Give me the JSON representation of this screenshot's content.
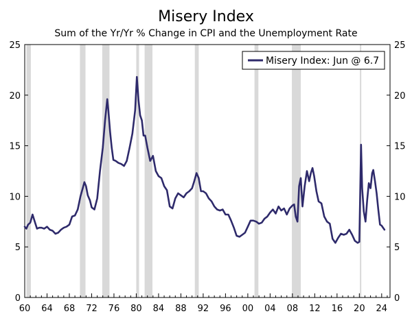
{
  "chart_data": {
    "type": "line",
    "title": "Misery Index",
    "subtitle": "Sum of the Yr/Yr % Change in CPI and the Unemployment Rate",
    "xlabel": "",
    "ylabel": "",
    "xlim": [
      1960,
      2025.5
    ],
    "ylim": [
      0,
      25
    ],
    "x_ticks": [
      1960,
      1964,
      1968,
      1972,
      1976,
      1980,
      1984,
      1988,
      1992,
      1996,
      2000,
      2004,
      2008,
      2012,
      2016,
      2020,
      2024
    ],
    "x_tick_labels": [
      "60",
      "64",
      "68",
      "72",
      "76",
      "80",
      "84",
      "88",
      "92",
      "96",
      "00",
      "04",
      "08",
      "12",
      "16",
      "20",
      "24"
    ],
    "y_ticks": [
      0,
      5,
      10,
      15,
      20,
      25
    ],
    "y_tick_labels": [
      "0",
      "5",
      "10",
      "15",
      "20",
      "25"
    ],
    "grid": false,
    "legend_position": "top-right",
    "legend_entries": [
      "Misery Index: Jun @ 6.7"
    ],
    "colors": {
      "line": "#2e2a6b",
      "recession": "#d9d9d9",
      "axis": "#000000"
    },
    "recessions": [
      [
        1960.3,
        1961.1
      ],
      [
        1969.9,
        1970.9
      ],
      [
        1973.9,
        1975.2
      ],
      [
        1980.0,
        1980.5
      ],
      [
        1981.5,
        1982.9
      ],
      [
        1990.5,
        1991.2
      ],
      [
        2001.2,
        2001.9
      ],
      [
        2007.9,
        2009.5
      ],
      [
        2020.1,
        2020.3
      ]
    ],
    "series": [
      {
        "name": "Misery Index: Jun @ 6.7",
        "x": [
          1960.0,
          1960.3,
          1960.6,
          1961.0,
          1961.4,
          1961.8,
          1962.2,
          1962.6,
          1963.0,
          1963.5,
          1964.0,
          1964.5,
          1965.0,
          1965.5,
          1966.0,
          1966.5,
          1967.0,
          1967.5,
          1968.0,
          1968.5,
          1969.0,
          1969.5,
          1970.0,
          1970.4,
          1970.7,
          1971.0,
          1971.3,
          1971.7,
          1972.0,
          1972.5,
          1973.0,
          1973.5,
          1974.0,
          1974.4,
          1974.8,
          1975.0,
          1975.3,
          1975.6,
          1975.9,
          1976.3,
          1976.8,
          1977.3,
          1977.8,
          1978.3,
          1978.8,
          1979.3,
          1979.8,
          1980.1,
          1980.4,
          1980.7,
          1981.0,
          1981.3,
          1981.6,
          1982.0,
          1982.5,
          1983.0,
          1983.5,
          1984.0,
          1984.5,
          1985.0,
          1985.5,
          1986.0,
          1986.5,
          1987.0,
          1987.5,
          1988.0,
          1988.5,
          1989.0,
          1989.5,
          1990.0,
          1990.4,
          1990.8,
          1991.2,
          1991.6,
          1992.0,
          1992.5,
          1993.0,
          1993.5,
          1994.0,
          1994.5,
          1995.0,
          1995.5,
          1996.0,
          1996.5,
          1997.0,
          1997.5,
          1998.0,
          1998.5,
          1999.0,
          1999.5,
          2000.0,
          2000.5,
          2001.0,
          2001.5,
          2002.0,
          2002.5,
          2003.0,
          2003.5,
          2004.0,
          2004.5,
          2005.0,
          2005.5,
          2006.0,
          2006.5,
          2007.0,
          2007.5,
          2008.0,
          2008.3,
          2008.6,
          2008.9,
          2009.2,
          2009.5,
          2009.8,
          2010.2,
          2010.6,
          2011.0,
          2011.3,
          2011.6,
          2011.9,
          2012.3,
          2012.7,
          2013.2,
          2013.7,
          2014.2,
          2014.7,
          2015.2,
          2015.7,
          2016.2,
          2016.7,
          2017.2,
          2017.7,
          2018.2,
          2018.7,
          2019.2,
          2019.7,
          2020.0,
          2020.3,
          2020.5,
          2020.8,
          2021.1,
          2021.4,
          2021.7,
          2022.0,
          2022.3,
          2022.5,
          2022.8,
          2023.1,
          2023.4,
          2023.7,
          2024.0,
          2024.5
        ],
        "values": [
          7.0,
          6.8,
          7.2,
          7.4,
          8.2,
          7.5,
          6.8,
          6.9,
          6.9,
          6.8,
          7.0,
          6.7,
          6.6,
          6.3,
          6.4,
          6.7,
          6.9,
          7.0,
          7.2,
          8.0,
          8.1,
          8.7,
          10.0,
          10.8,
          11.4,
          11.0,
          10.1,
          9.6,
          8.9,
          8.7,
          9.8,
          12.5,
          14.8,
          17.5,
          19.6,
          18.5,
          16.4,
          14.8,
          13.6,
          13.5,
          13.3,
          13.2,
          13.0,
          13.5,
          14.8,
          16.2,
          18.5,
          21.8,
          19.5,
          18.0,
          17.5,
          16.0,
          16.0,
          14.8,
          13.5,
          14.0,
          12.5,
          12.0,
          11.8,
          11.0,
          10.6,
          9.0,
          8.8,
          9.8,
          10.3,
          10.1,
          9.9,
          10.3,
          10.5,
          10.8,
          11.5,
          12.3,
          11.8,
          10.5,
          10.5,
          10.3,
          9.8,
          9.5,
          9.0,
          8.7,
          8.6,
          8.7,
          8.2,
          8.2,
          7.6,
          6.9,
          6.1,
          6.0,
          6.2,
          6.4,
          7.0,
          7.6,
          7.6,
          7.5,
          7.3,
          7.4,
          7.8,
          8.0,
          8.4,
          8.7,
          8.3,
          9.0,
          8.6,
          8.8,
          8.2,
          8.8,
          9.1,
          9.2,
          8.0,
          7.5,
          11.0,
          11.8,
          9.0,
          11.0,
          12.5,
          11.5,
          12.3,
          12.8,
          12.0,
          10.5,
          9.5,
          9.3,
          8.0,
          7.5,
          7.3,
          5.8,
          5.4,
          5.9,
          6.3,
          6.2,
          6.3,
          6.7,
          6.2,
          5.6,
          5.4,
          5.5,
          15.1,
          10.8,
          8.5,
          7.5,
          9.6,
          11.3,
          10.8,
          12.3,
          12.6,
          11.5,
          10.3,
          8.7,
          7.2,
          7.1,
          6.7
        ]
      }
    ]
  }
}
